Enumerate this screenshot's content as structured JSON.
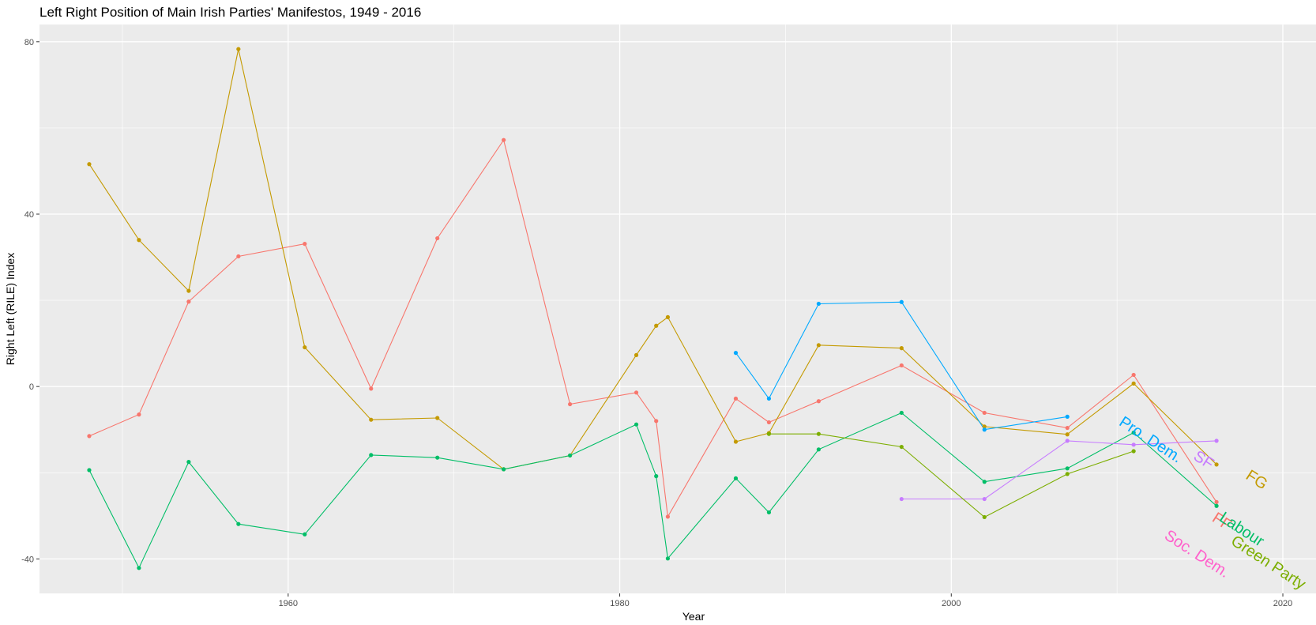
{
  "chart_data": {
    "type": "line",
    "title": "Left Right Position of Main Irish Parties' Manifestos, 1949 - 2016",
    "xlabel": "Year",
    "ylabel": "Right Left (RILE) Index",
    "xlim": [
      1945,
      2022
    ],
    "ylim": [
      -48,
      84
    ],
    "x_ticks": [
      1960,
      1980,
      2000,
      2020
    ],
    "y_ticks": [
      -40,
      0,
      40,
      80
    ],
    "x_tick_labels": [
      "1960",
      "1980",
      "2000",
      "2020"
    ],
    "y_tick_labels": [
      "-40",
      "0",
      "40",
      "80"
    ],
    "grid": true,
    "legend": "direct labels at line ends",
    "series": [
      {
        "name": "FF",
        "color": "#F8766D",
        "points": [
          [
            1948,
            -11.5
          ],
          [
            1951,
            -6.5
          ],
          [
            1954,
            19.7
          ],
          [
            1957,
            30.2
          ],
          [
            1961,
            33.1
          ],
          [
            1965,
            -0.5
          ],
          [
            1969,
            34.4
          ],
          [
            1973,
            57.2
          ],
          [
            1977,
            -4.1
          ],
          [
            1981,
            -1.4
          ],
          [
            1982.2,
            -8
          ],
          [
            1982.9,
            -30.2
          ],
          [
            1987,
            -2.8
          ],
          [
            1989,
            -8.3
          ],
          [
            1992,
            -3.4
          ],
          [
            1997,
            4.9
          ],
          [
            2002,
            -6.1
          ],
          [
            2007,
            -9.6
          ],
          [
            2011,
            2.7
          ],
          [
            2016,
            -26.8
          ]
        ],
        "label_year": 2016.3,
        "label_value": -31.5,
        "label_angle": 33
      },
      {
        "name": "FG",
        "color": "#C49A00",
        "points": [
          [
            1948,
            51.6
          ],
          [
            1951,
            34
          ],
          [
            1954,
            22.2
          ],
          [
            1957,
            78.3
          ],
          [
            1961,
            9.1
          ],
          [
            1965,
            -7.7
          ],
          [
            1969,
            -7.3
          ],
          [
            1973,
            -19.2
          ],
          [
            1977,
            -16
          ],
          [
            1981,
            7.3
          ],
          [
            1982.2,
            14.1
          ],
          [
            1982.9,
            16.1
          ],
          [
            1987,
            -12.8
          ],
          [
            1989,
            -10.8
          ],
          [
            1992,
            9.6
          ],
          [
            1997,
            8.9
          ],
          [
            2002,
            -9.3
          ],
          [
            2007,
            -11.1
          ],
          [
            2011,
            0.7
          ],
          [
            2016,
            -18.1
          ]
        ],
        "label_year": 2018.4,
        "label_value": -21.8,
        "label_angle": 33
      },
      {
        "name": "Labour",
        "color": "#00BE67",
        "points": [
          [
            1948,
            -19.4
          ],
          [
            1951,
            -42.1
          ],
          [
            1954,
            -17.5
          ],
          [
            1957,
            -31.9
          ],
          [
            1961,
            -34.3
          ],
          [
            1965,
            -15.9
          ],
          [
            1969,
            -16.5
          ],
          [
            1973,
            -19.2
          ],
          [
            1977,
            -16
          ],
          [
            1981,
            -8.8
          ],
          [
            1982.2,
            -20.8
          ],
          [
            1982.9,
            -39.9
          ],
          [
            1987,
            -21.3
          ],
          [
            1989,
            -29.2
          ],
          [
            1992,
            -14.6
          ],
          [
            1997,
            -6.1
          ],
          [
            2002,
            -22.1
          ],
          [
            2007,
            -19
          ],
          [
            2011,
            -10.7
          ],
          [
            2016,
            -27.7
          ]
        ],
        "label_year": 2017.5,
        "label_value": -33.3,
        "label_angle": 33
      },
      {
        "name": "Pro. Dem.",
        "color": "#00A9FF",
        "points": [
          [
            1987,
            7.8
          ],
          [
            1989,
            -2.8
          ],
          [
            1992,
            19.2
          ],
          [
            1997,
            19.6
          ],
          [
            2002,
            -10
          ],
          [
            2007,
            -7
          ]
        ],
        "label_year": 2012,
        "label_value": -12.5,
        "label_angle": 33
      },
      {
        "name": "SF",
        "color": "#C77CFF",
        "points": [
          [
            1997,
            -26.1
          ],
          [
            2002,
            -26.1
          ],
          [
            2007,
            -12.6
          ],
          [
            2011,
            -13.5
          ],
          [
            2016,
            -12.6
          ]
        ],
        "label_year": 2015.2,
        "label_value": -17.2,
        "label_angle": 33
      },
      {
        "name": "Green Party",
        "color": "#7CAE00",
        "points": [
          [
            1989,
            -11
          ],
          [
            1992,
            -11
          ],
          [
            1997,
            -14
          ],
          [
            2002,
            -30.3
          ],
          [
            2007,
            -20.3
          ],
          [
            2011,
            -15
          ]
        ],
        "label_year": 2019.1,
        "label_value": -41,
        "label_angle": 33
      },
      {
        "name": "Soc. Dem.",
        "color": "#FF61CC",
        "points": [],
        "label_year": 2014.8,
        "label_value": -39,
        "label_angle": 33
      }
    ]
  }
}
